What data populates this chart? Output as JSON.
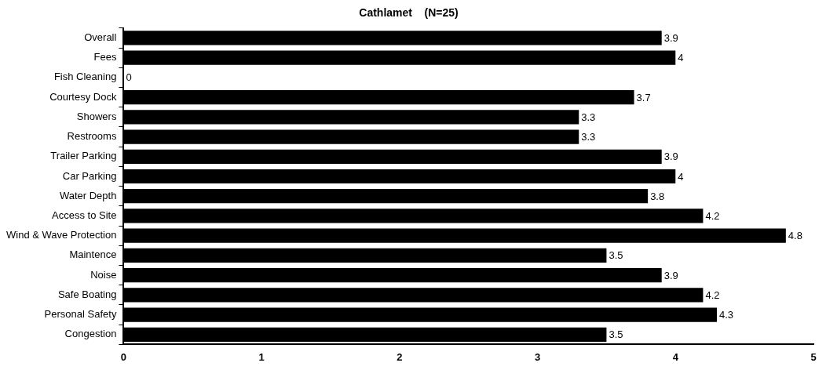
{
  "chart_data": {
    "type": "bar",
    "orientation": "horizontal",
    "title": "Cathlamet    (N=25)",
    "categories": [
      "Overall",
      "Fees",
      "Fish Cleaning",
      "Courtesy Dock",
      "Showers",
      "Restrooms",
      "Trailer Parking",
      "Car Parking",
      "Water Depth",
      "Access to Site",
      "Wind & Wave Protection",
      "Maintence",
      "Noise",
      "Safe Boating",
      "Personal Safety",
      "Congestion"
    ],
    "values": [
      3.9,
      4,
      0,
      3.7,
      3.3,
      3.3,
      3.9,
      4,
      3.8,
      4.2,
      4.8,
      3.5,
      3.9,
      4.2,
      4.3,
      3.5
    ],
    "color": "#000000",
    "xlim": [
      0,
      5
    ],
    "xticks": [
      0,
      1,
      2,
      3,
      4,
      5
    ],
    "grid": false,
    "legend": false,
    "data_labels": true
  }
}
